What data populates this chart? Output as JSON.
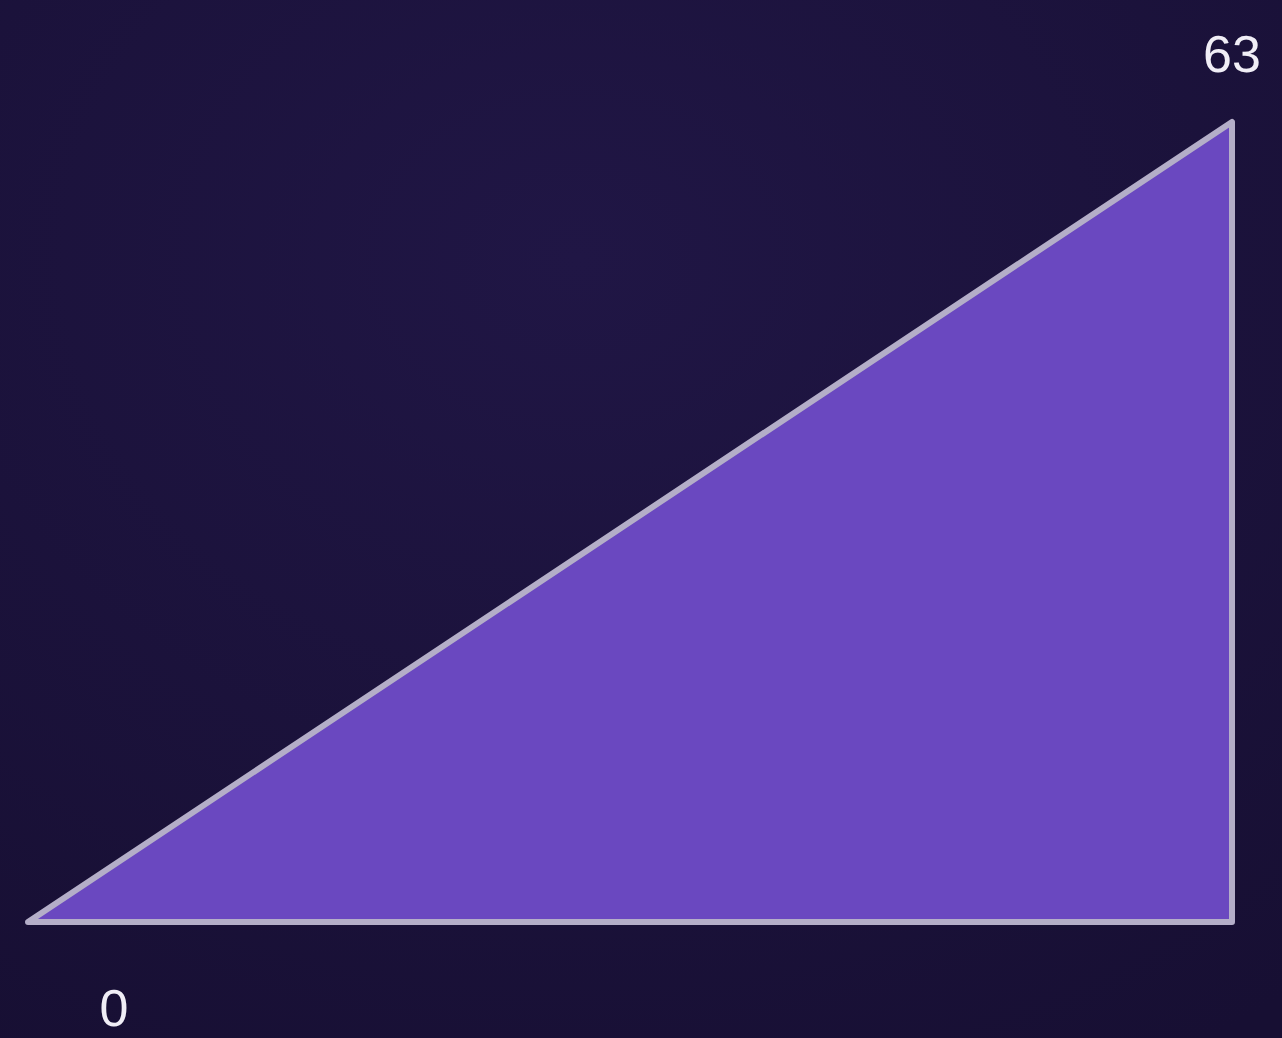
{
  "chart_data": {
    "type": "area",
    "categories": [
      null,
      null
    ],
    "values": [
      0,
      63
    ],
    "color": "#6a48c0",
    "data_labels": true
  }
}
